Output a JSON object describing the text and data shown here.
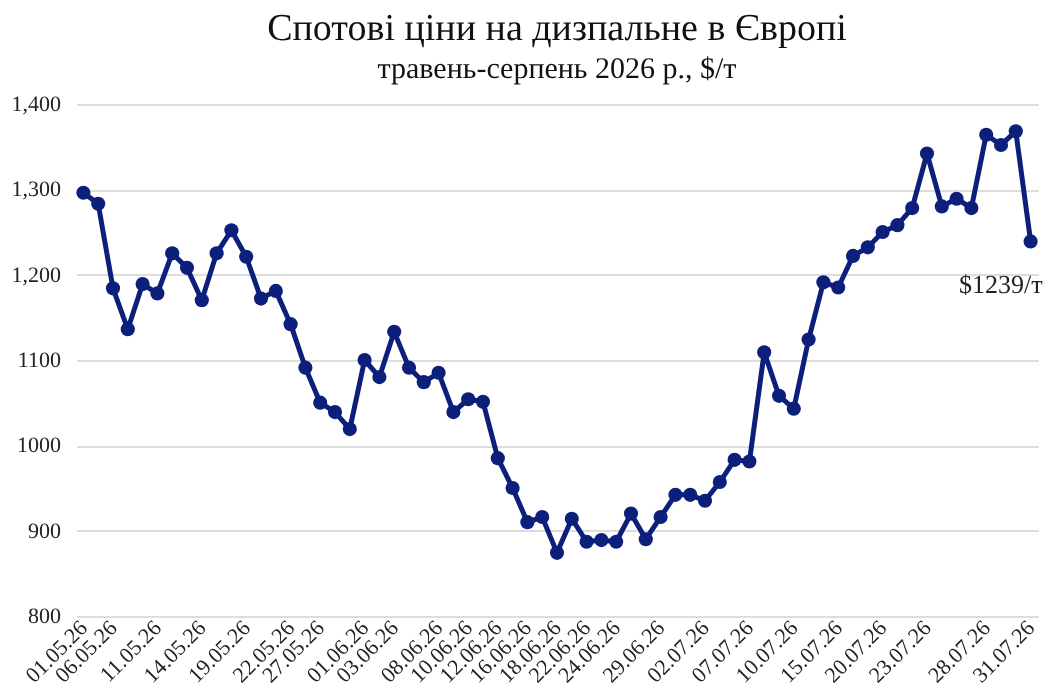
{
  "chart_data": {
    "type": "line",
    "title": "Спотові ціни на дизпальне в Європі",
    "subtitle": "травень-серпень 2026 р., $/т",
    "categories": [
      "01.05.26",
      null,
      "06.05.26",
      null,
      null,
      "11.05.26",
      null,
      null,
      "14.05.26",
      null,
      null,
      "19.05.26",
      null,
      null,
      "22.05.26",
      null,
      "27.05.26",
      null,
      null,
      "01.06.26",
      null,
      "03.06.26",
      null,
      null,
      "08.06.26",
      null,
      "10.06.26",
      null,
      "12.06.26",
      null,
      "16.06.26",
      null,
      "18.06.26",
      null,
      "22.06.26",
      null,
      "24.06.26",
      null,
      null,
      "29.06.26",
      null,
      null,
      "02.07.26",
      null,
      null,
      "07.07.26",
      null,
      null,
      "10.07.26",
      null,
      null,
      "15.07.26",
      null,
      null,
      "20.07.26",
      null,
      null,
      "23.07.26",
      null,
      null,
      null,
      "28.07.26",
      null,
      null,
      "31.07.26"
    ],
    "series": [
      {
        "color": "#0c1f7a",
        "values": [
          1296,
          1283,
          1184,
          1136,
          1189,
          1178,
          1225,
          1208,
          1170,
          1225,
          1252,
          1221,
          1172,
          1181,
          1142,
          1091,
          1050,
          1039,
          1019,
          1100,
          1080,
          1133,
          1091,
          1074,
          1085,
          1039,
          1054,
          1051,
          985,
          950,
          910,
          916,
          874,
          914,
          887,
          889,
          887,
          920,
          890,
          916,
          942,
          942,
          935,
          957,
          983,
          981,
          1109,
          1058,
          1043,
          1124,
          1191,
          1185,
          1222,
          1232,
          1250,
          1258,
          1278,
          1342,
          1280,
          1289,
          1278,
          1364,
          1352,
          1368,
          1239
        ]
      }
    ],
    "ylim": [
      800,
      1400
    ],
    "yticks": [
      800,
      900,
      1000,
      1100,
      {
        "value": 1200,
        "label": "1,200"
      },
      {
        "value": 1300,
        "label": "1,300"
      },
      {
        "value": 1400,
        "label": "1,400"
      }
    ],
    "grid": "y",
    "marker": "circle",
    "line_style": "solid",
    "annotations": [
      {
        "text": "$1239/т",
        "x": "31.07.26",
        "y": 1239
      }
    ]
  }
}
